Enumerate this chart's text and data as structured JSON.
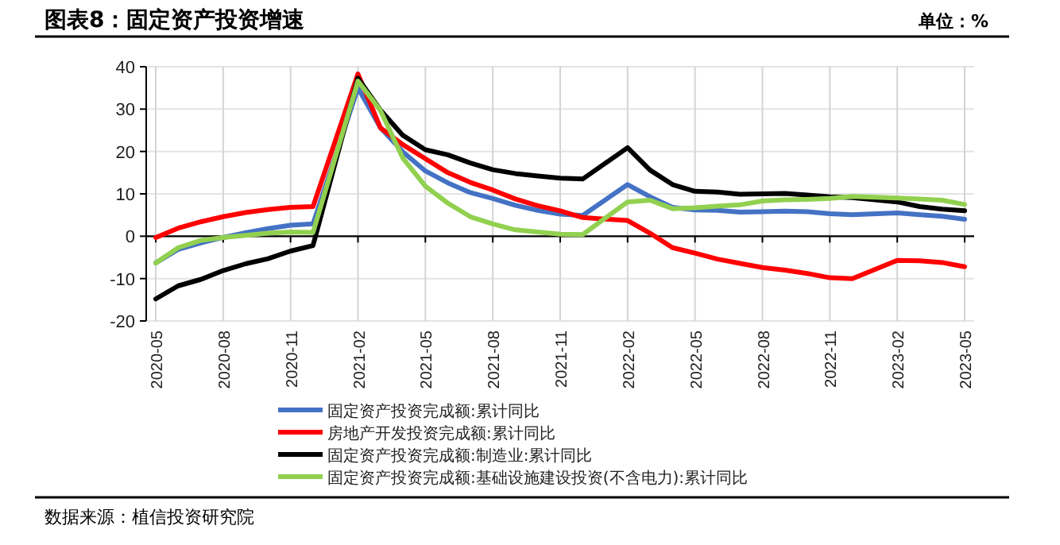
{
  "chart_data": {
    "type": "line",
    "title": "图表8：固定资产投资增速",
    "ylabel": "单位：%",
    "annotations": [
      "数据来源：植信投资研究院"
    ],
    "x": [
      "2020-05",
      "2020-06",
      "2020-07",
      "2020-08",
      "2020-09",
      "2020-10",
      "2020-11",
      "2020-12",
      "2021-02",
      "2021-03",
      "2021-04",
      "2021-05",
      "2021-06",
      "2021-07",
      "2021-08",
      "2021-09",
      "2021-10",
      "2021-11",
      "2021-12",
      "2022-02",
      "2022-03",
      "2022-04",
      "2022-05",
      "2022-06",
      "2022-07",
      "2022-08",
      "2022-09",
      "2022-10",
      "2022-11",
      "2022-12",
      "2023-02",
      "2023-03",
      "2023-04",
      "2023-05"
    ],
    "series": [
      {
        "name": "固定资产投资完成额:累计同比",
        "color": "#4472c4",
        "values": [
          -6.3,
          -3.1,
          -1.6,
          -0.3,
          0.8,
          1.8,
          2.6,
          2.9,
          35.0,
          25.6,
          19.9,
          15.4,
          12.6,
          10.3,
          8.9,
          7.3,
          6.1,
          5.2,
          4.9,
          12.2,
          9.3,
          6.8,
          6.2,
          6.1,
          5.7,
          5.8,
          5.9,
          5.8,
          5.3,
          5.1,
          5.5,
          5.1,
          4.7,
          4.0
        ]
      },
      {
        "name": "房地产开发投资完成额:累计同比",
        "color": "#ff0000",
        "values": [
          -0.3,
          1.9,
          3.4,
          4.6,
          5.6,
          6.3,
          6.8,
          7.0,
          38.3,
          25.6,
          21.6,
          18.3,
          15.0,
          12.7,
          10.9,
          8.8,
          7.2,
          6.0,
          4.4,
          3.7,
          0.7,
          -2.7,
          -4.0,
          -5.4,
          -6.4,
          -7.4,
          -8.0,
          -8.8,
          -9.8,
          -10.0,
          -5.7,
          -5.8,
          -6.2,
          -7.2
        ]
      },
      {
        "name": "固定资产投资完成额:制造业:累计同比",
        "color": "#000000",
        "values": [
          -14.8,
          -11.7,
          -10.2,
          -8.1,
          -6.5,
          -5.3,
          -3.5,
          -2.2,
          37.3,
          29.8,
          23.8,
          20.4,
          19.2,
          17.3,
          15.7,
          14.8,
          14.2,
          13.7,
          13.5,
          20.9,
          15.6,
          12.2,
          10.6,
          10.4,
          9.9,
          10.0,
          10.1,
          9.7,
          9.3,
          9.1,
          8.1,
          7.0,
          6.4,
          6.0
        ]
      },
      {
        "name": "固定资产投资完成额:基础设施建设投资(不含电力):累计同比",
        "color": "#92d050",
        "values": [
          -6.3,
          -2.7,
          -1.0,
          -0.3,
          0.2,
          0.7,
          1.0,
          0.9,
          36.6,
          29.7,
          18.4,
          11.8,
          7.8,
          4.6,
          2.9,
          1.5,
          1.0,
          0.5,
          0.4,
          8.1,
          8.5,
          6.5,
          6.7,
          7.1,
          7.4,
          8.3,
          8.6,
          8.7,
          8.9,
          9.4,
          9.0,
          8.8,
          8.5,
          7.5
        ]
      }
    ],
    "xlim": [
      "2020-05",
      "2023-05"
    ],
    "xticks": [
      "2020-05",
      "2020-08",
      "2020-11",
      "2021-02",
      "2021-05",
      "2021-08",
      "2021-11",
      "2022-02",
      "2022-05",
      "2022-08",
      "2022-11",
      "2023-02",
      "2023-05"
    ],
    "ylim": [
      -20,
      40
    ],
    "yticks": [
      -20,
      -10,
      0,
      10,
      20,
      30,
      40
    ],
    "grid": true,
    "legend": "bottom",
    "line_style": "solid",
    "marker": "none"
  }
}
